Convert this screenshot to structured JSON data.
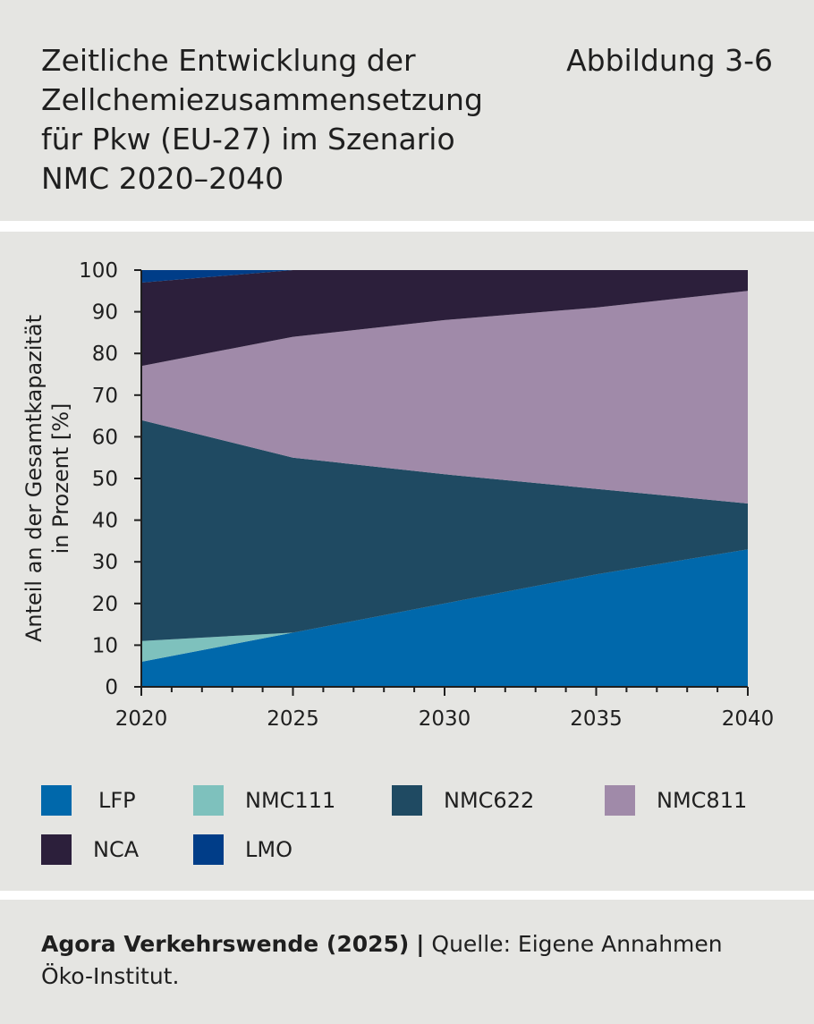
{
  "header": {
    "title": "Zeitliche Entwicklung der\nZellchemiezusammensetzung\nfür Pkw (EU-27) im Szenario\nNMC 2020–2040",
    "figure_label": "Abbildung 3-6"
  },
  "footer": {
    "publisher": "Agora Verkehrswende (2025)",
    "separator": "|",
    "source": "Quelle: Eigene Annahmen Öko-Institut."
  },
  "colors": {
    "panel_bg": "#e5e5e2",
    "LFP": "#0068ab",
    "NMC111": "#7ec1bd",
    "NMC622": "#1f4a62",
    "NMC811": "#a08aa9",
    "NCA": "#2c1f3b",
    "LMO": "#003d88"
  },
  "chart_data": {
    "type": "area",
    "stacked": true,
    "title": "",
    "ylabel": "Anteil an der Gesamtkapazität in Prozent [%]",
    "ylabel_lines": [
      "Anteil an der Gesamtkapazität",
      "in Prozent [%]"
    ],
    "xlabel": "",
    "x": [
      2020,
      2025,
      2030,
      2035,
      2040
    ],
    "xlim": [
      2020,
      2040
    ],
    "ylim": [
      0,
      100
    ],
    "x_ticks": [
      2020,
      2025,
      2030,
      2035,
      2040
    ],
    "y_ticks": [
      0,
      10,
      20,
      30,
      40,
      50,
      60,
      70,
      80,
      90,
      100
    ],
    "grid": false,
    "legend_position": "bottom",
    "series": [
      {
        "name": "LFP",
        "color": "#0068ab",
        "values": [
          6,
          13,
          20,
          27,
          33
        ]
      },
      {
        "name": "NMC111",
        "color": "#7ec1bd",
        "values": [
          5,
          0,
          0,
          0,
          0
        ]
      },
      {
        "name": "NMC622",
        "color": "#1f4a62",
        "values": [
          53,
          42,
          31,
          20.5,
          11
        ]
      },
      {
        "name": "NMC811",
        "color": "#a08aa9",
        "values": [
          13,
          29,
          37,
          43.5,
          51
        ]
      },
      {
        "name": "NCA",
        "color": "#2c1f3b",
        "values": [
          20,
          16,
          12,
          9,
          5
        ]
      },
      {
        "name": "LMO",
        "color": "#003d88",
        "values": [
          3,
          0,
          0,
          0,
          0
        ]
      }
    ]
  }
}
